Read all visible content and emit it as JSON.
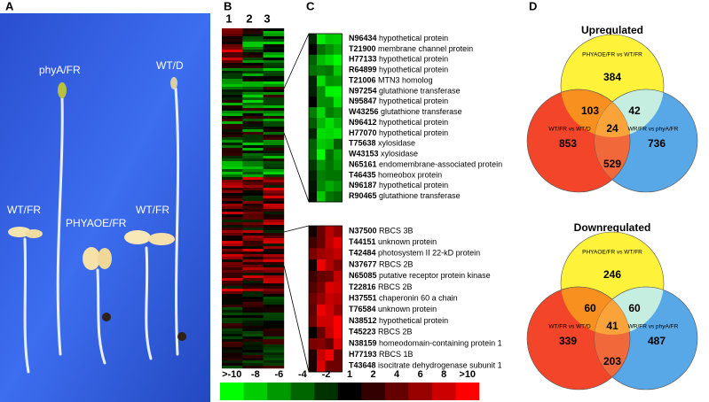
{
  "panels": {
    "a": {
      "label": "A",
      "labels": [
        "phyA/FR",
        "WT/D",
        "WT/FR",
        "PHYAOE/FR",
        "WT/FR"
      ]
    },
    "b": {
      "label": "B",
      "columns": [
        "1",
        "2",
        "3"
      ]
    },
    "c": {
      "label": "C",
      "upper": [
        {
          "id": "N96434",
          "name": "hypothetical protein"
        },
        {
          "id": "T21900",
          "name": "membrane channel protein"
        },
        {
          "id": "H77133",
          "name": "hypothetical protein"
        },
        {
          "id": "R64899",
          "name": "hypothetical protein"
        },
        {
          "id": "T21006",
          "name": "MTN3 homolog"
        },
        {
          "id": "N97254",
          "name": "glutathione transferase"
        },
        {
          "id": "N95847",
          "name": "hypothetical protein"
        },
        {
          "id": "W43256",
          "name": "glutathione transferase"
        },
        {
          "id": "N96412",
          "name": "hypothetical protein"
        },
        {
          "id": "H77070",
          "name": "hypothetical protein"
        },
        {
          "id": "T75638",
          "name": "xylosidase"
        },
        {
          "id": "W43153",
          "name": "xylosidase"
        },
        {
          "id": "N65161",
          "name": "endomembrane-associated protein"
        },
        {
          "id": "T46435",
          "name": "homeobox protein"
        },
        {
          "id": "N96187",
          "name": "hypothetical protein"
        },
        {
          "id": "R90465",
          "name": "glutathione transferase"
        }
      ],
      "lower": [
        {
          "id": "N37500",
          "name": "RBCS 3B"
        },
        {
          "id": "T44151",
          "name": "unknown protein"
        },
        {
          "id": "T42484",
          "name": "photosystem II 22-kD protein"
        },
        {
          "id": "N37677",
          "name": "RBCS 2B"
        },
        {
          "id": "N65085",
          "name": "putative receptor protein kinase"
        },
        {
          "id": "T22816",
          "name": "RBCS 2B"
        },
        {
          "id": "H37551",
          "name": "chaperonin 60 a chain"
        },
        {
          "id": "T76584",
          "name": "unknown protein"
        },
        {
          "id": "N38512",
          "name": "hypothetical protein"
        },
        {
          "id": "T45223",
          "name": "RBCS 2B"
        },
        {
          "id": "N38159",
          "name": "homeodomain-containing protein 1"
        },
        {
          "id": "H77193",
          "name": "RBCS 1B"
        },
        {
          "id": "T43648",
          "name": "isocitrate dehydrogenase subunit 1"
        }
      ]
    },
    "d": {
      "label": "D",
      "diagrams": [
        {
          "title": "Upregulated",
          "sets": [
            "PHYAOE/FR vs WT/FR",
            "WT/FR vs WT/D",
            "WR/FR vs phyA/FR"
          ],
          "regions": {
            "a_only": 384,
            "ab": 103,
            "ac": 42,
            "abc": 24,
            "b_only": 853,
            "bc": 529,
            "c_only": 736
          }
        },
        {
          "title": "Downregulated",
          "sets": [
            "PHYAOE/FR vs WT/FR",
            "WT/FR vs WT/D",
            "WR/FR vs phyA/FR"
          ],
          "regions": {
            "a_only": 246,
            "ab": 60,
            "ac": 60,
            "abc": 41,
            "b_only": 339,
            "bc": 203,
            "c_only": 487
          }
        }
      ]
    }
  },
  "color_scale": [
    ">-10",
    "-8",
    "-6",
    "-4",
    "-2",
    "1",
    "2",
    "4",
    "6",
    "8",
    ">10"
  ]
}
